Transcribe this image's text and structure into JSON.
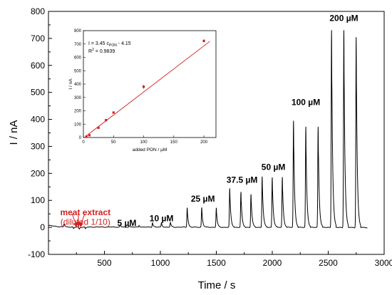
{
  "chart_data": [
    {
      "type": "line",
      "xlabel": "Time / s",
      "ylabel": "I / nA",
      "xlim": [
        0,
        3000
      ],
      "ylim": [
        -100,
        800
      ],
      "x_ticks": [
        500,
        1000,
        1500,
        2000,
        2500,
        3000
      ],
      "y_ticks": [
        -100,
        0,
        100,
        200,
        300,
        400,
        500,
        600,
        700,
        800
      ],
      "grid": false,
      "series": [
        {
          "peaks": [
            {
              "t": 140,
              "height": 12,
              "group": "meat"
            },
            {
              "t": 225,
              "height": -7,
              "group": "meat"
            },
            {
              "t": 275,
              "height": -8,
              "group": "meat"
            },
            {
              "t": 330,
              "height": -7,
              "group": "meat"
            },
            {
              "t": 640,
              "height": 7,
              "group": "5"
            },
            {
              "t": 720,
              "height": 6,
              "group": "5"
            },
            {
              "t": 810,
              "height": 7,
              "group": "5"
            },
            {
              "t": 930,
              "height": 17,
              "group": "10"
            },
            {
              "t": 1010,
              "height": 16,
              "group": "10"
            },
            {
              "t": 1090,
              "height": 17,
              "group": "10"
            },
            {
              "t": 1240,
              "height": 73,
              "group": "25"
            },
            {
              "t": 1370,
              "height": 73,
              "group": "25"
            },
            {
              "t": 1500,
              "height": 72,
              "group": "25"
            },
            {
              "t": 1620,
              "height": 143,
              "group": "37.5"
            },
            {
              "t": 1720,
              "height": 130,
              "group": "37.5"
            },
            {
              "t": 1810,
              "height": 123,
              "group": "37.5"
            },
            {
              "t": 1910,
              "height": 189,
              "group": "50"
            },
            {
              "t": 2000,
              "height": 186,
              "group": "50"
            },
            {
              "t": 2090,
              "height": 186,
              "group": "50"
            },
            {
              "t": 2190,
              "height": 395,
              "group": "100"
            },
            {
              "t": 2300,
              "height": 373,
              "group": "100"
            },
            {
              "t": 2410,
              "height": 373,
              "group": "100"
            },
            {
              "t": 2530,
              "height": 732,
              "group": "200"
            },
            {
              "t": 2640,
              "height": 732,
              "group": "200"
            },
            {
              "t": 2750,
              "height": 706,
              "group": "200"
            }
          ],
          "t_start": 0,
          "t_end": 2850
        }
      ],
      "annotations": [
        {
          "text": "meat extract",
          "x": 330,
          "y": 45,
          "color": "#d51f1f"
        },
        {
          "text": "(diluted 1/10)",
          "x": 330,
          "y": 10,
          "color": "#d51f1f"
        },
        {
          "text": "5 µM",
          "x": 700,
          "y": 6
        },
        {
          "text": "10 µM",
          "x": 1010,
          "y": 23
        },
        {
          "text": "25 µM",
          "x": 1380,
          "y": 95
        },
        {
          "text": "37.5 µM",
          "x": 1730,
          "y": 165
        },
        {
          "text": "50 µM",
          "x": 2010,
          "y": 213
        },
        {
          "text": "100 µM",
          "x": 2300,
          "y": 453
        },
        {
          "text": "200 µM",
          "x": 2640,
          "y": 765
        }
      ]
    },
    {
      "type": "scatter",
      "xlabel": "added PON / µM",
      "ylabel": "I / nA",
      "xlim": [
        0,
        220
      ],
      "ylim": [
        0,
        800
      ],
      "x_ticks": [
        0,
        50,
        100,
        150,
        200
      ],
      "y_ticks": [
        0,
        100,
        200,
        300,
        400,
        500,
        600,
        700,
        800
      ],
      "points": [
        {
          "x": 5,
          "y": 7,
          "err": 3
        },
        {
          "x": 10,
          "y": 17,
          "err": 3
        },
        {
          "x": 25,
          "y": 73,
          "err": 4
        },
        {
          "x": 37.5,
          "y": 130,
          "err": 9
        },
        {
          "x": 50,
          "y": 187,
          "err": 4
        },
        {
          "x": 100,
          "y": 380,
          "err": 15
        },
        {
          "x": 200,
          "y": 723,
          "err": 13
        }
      ],
      "fit": {
        "slope": 3.45,
        "intercept": -4.15,
        "x_range": [
          5,
          210
        ]
      },
      "equation": {
        "main": "I = 3.45 c",
        "sub": "PON",
        "tail": " - 4.15"
      },
      "r2": {
        "main": "R",
        "sup": "2",
        "tail": " = 0.9839"
      }
    }
  ]
}
